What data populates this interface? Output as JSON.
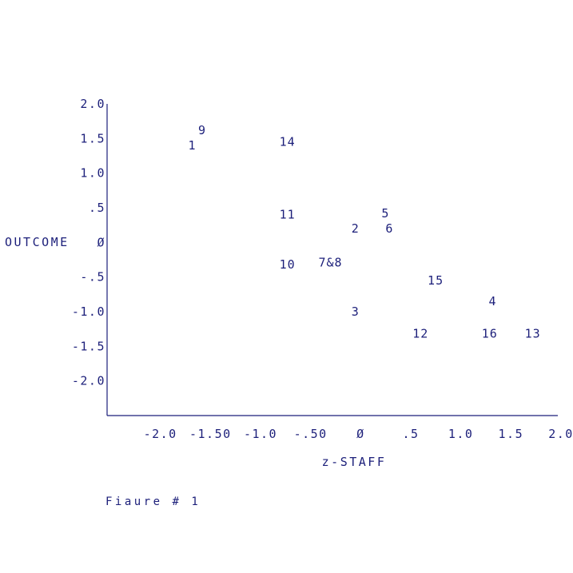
{
  "chart_data": {
    "type": "scatter",
    "title": "",
    "xlabel": "z-STAFF",
    "ylabel": "OUTCOME",
    "xlim": [
      -2.5,
      2.0
    ],
    "ylim": [
      -2.5,
      2.0
    ],
    "grid": false,
    "legend": "none",
    "color": "#1c1f7a",
    "x_ticks": [
      {
        "value": -2.0,
        "label": "-2.0"
      },
      {
        "value": -1.5,
        "label": "-1.50"
      },
      {
        "value": -1.0,
        "label": "-1.0"
      },
      {
        "value": -0.5,
        "label": "-.50"
      },
      {
        "value": 0.0,
        "label": "Ø"
      },
      {
        "value": 0.5,
        "label": ".5"
      },
      {
        "value": 1.0,
        "label": "1.0"
      },
      {
        "value": 1.5,
        "label": "1.5"
      },
      {
        "value": 2.0,
        "label": "2.0"
      }
    ],
    "y_ticks": [
      {
        "value": 2.0,
        "label": "2.0"
      },
      {
        "value": 1.5,
        "label": "1.5"
      },
      {
        "value": 1.0,
        "label": "1.0"
      },
      {
        "value": 0.5,
        "label": ".5"
      },
      {
        "value": 0.0,
        "label": "Ø"
      },
      {
        "value": -0.5,
        "label": "-.5"
      },
      {
        "value": -1.0,
        "label": "-1.0"
      },
      {
        "value": -1.5,
        "label": "-1.5"
      },
      {
        "value": -2.0,
        "label": "-2.0"
      }
    ],
    "points": [
      {
        "label": "9",
        "x": -1.55,
        "y": 1.62
      },
      {
        "label": "1",
        "x": -1.65,
        "y": 1.4
      },
      {
        "label": "14",
        "x": -0.7,
        "y": 1.45
      },
      {
        "label": "11",
        "x": -0.7,
        "y": 0.4
      },
      {
        "label": "5",
        "x": 0.28,
        "y": 0.42
      },
      {
        "label": "2",
        "x": -0.02,
        "y": 0.2
      },
      {
        "label": "6",
        "x": 0.32,
        "y": 0.2
      },
      {
        "label": "10",
        "x": -0.7,
        "y": -0.32
      },
      {
        "label": "7&8",
        "x": -0.27,
        "y": -0.29
      },
      {
        "label": "15",
        "x": 0.78,
        "y": -0.55
      },
      {
        "label": "4",
        "x": 1.35,
        "y": -0.85
      },
      {
        "label": "3",
        "x": -0.02,
        "y": -1.0
      },
      {
        "label": "12",
        "x": 0.63,
        "y": -1.32
      },
      {
        "label": "16",
        "x": 1.32,
        "y": -1.32
      },
      {
        "label": "13",
        "x": 1.75,
        "y": -1.32
      }
    ]
  },
  "caption": "Fiaure # 1"
}
